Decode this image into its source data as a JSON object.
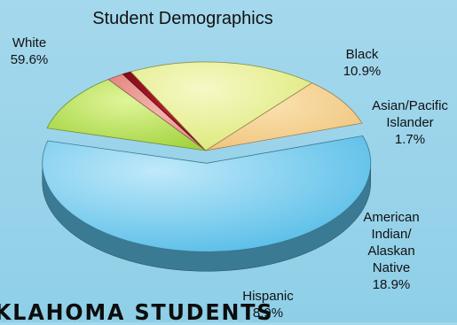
{
  "chart_data": {
    "type": "pie",
    "title": "Student Demographics",
    "series": [
      {
        "label_lines": [
          "White",
          "59.6%"
        ],
        "value": 59.6,
        "color": "#5ec4ec",
        "exploded": true
      },
      {
        "label_lines": [
          "Black",
          "10.9%"
        ],
        "value": 10.9,
        "color": "#b6e353"
      },
      {
        "label_lines": [
          "Asian/Pacific",
          "Islander",
          "1.7%"
        ],
        "value": 1.7,
        "color": "#e8908a"
      },
      {
        "label_lines": [],
        "value": 0.9,
        "color": "#8e1020"
      },
      {
        "label_lines": [
          "American",
          "Indian/",
          "Alaskan",
          "Native",
          "18.9%"
        ],
        "value": 18.9,
        "color": "#e3ed7c"
      },
      {
        "label_lines": [
          "Hispanic",
          "8.9%"
        ],
        "value": 8.9,
        "color": "#f3cc84"
      }
    ]
  },
  "banner_text": "KLAHOMA STUDENTS"
}
